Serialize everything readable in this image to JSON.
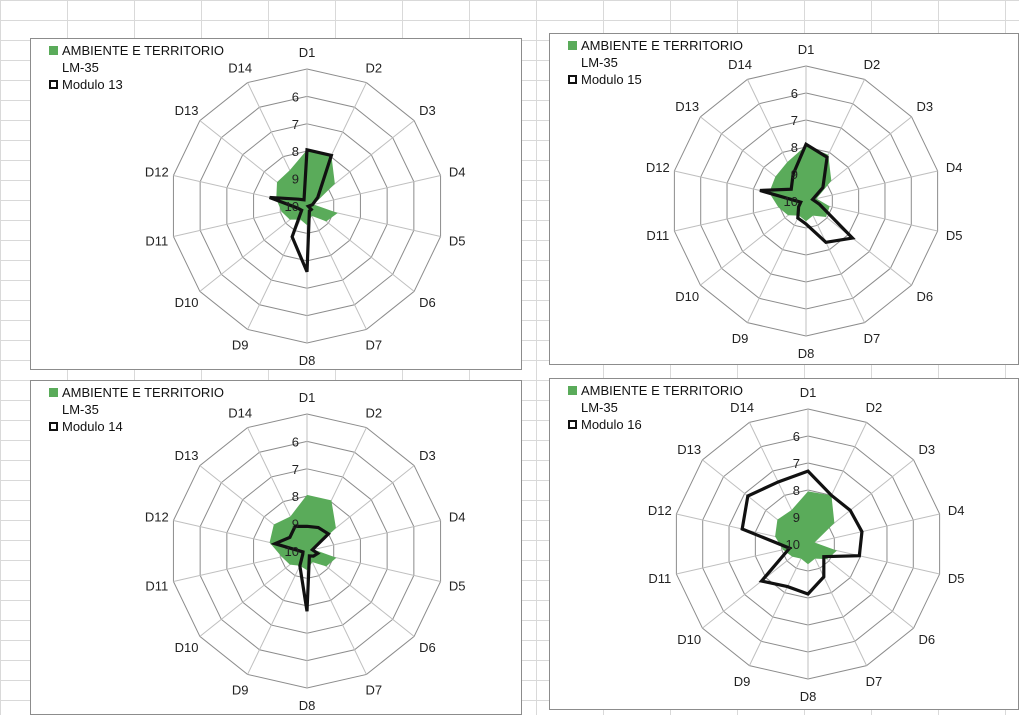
{
  "colors": {
    "area": "#5aab5a",
    "line": "#111111",
    "grid": "#8c8c8c",
    "spoke": "#bfbfbf"
  },
  "chart_data": [
    {
      "type": "radar",
      "axes": [
        "D1",
        "D2",
        "D3",
        "D4",
        "D5",
        "D6",
        "D7",
        "D8",
        "D9",
        "D10",
        "D11",
        "D12",
        "D13",
        "D14"
      ],
      "radial_ticks": [
        "6",
        "7",
        "8",
        "9",
        "10"
      ],
      "rlim": [
        10,
        5
      ],
      "legend": [
        "AMBIENTE E TERRITORIO",
        "LM-35",
        "Modulo 13"
      ],
      "series": [
        {
          "name": "AMBIENTE E TERRITORIO LM-35",
          "fill": true,
          "values": [
            7.95,
            7.95,
            8.7,
            9.75,
            8.85,
            9.1,
            9.6,
            9.3,
            9.45,
            9.2,
            9.05,
            8.85,
            8.6,
            8.55
          ]
        },
        {
          "name": "Modulo 13",
          "fill": false,
          "values": [
            7.95,
            7.95,
            9.5,
            9.8,
            9.95,
            9.8,
            9.8,
            7.6,
            8.75,
            9.75,
            9.65,
            8.6,
            9.6,
            9.75
          ]
        }
      ]
    },
    {
      "type": "radar",
      "axes": [
        "D1",
        "D2",
        "D3",
        "D4",
        "D5",
        "D6",
        "D7",
        "D8",
        "D9",
        "D10",
        "D11",
        "D12",
        "D13",
        "D14"
      ],
      "radial_ticks": [
        "6",
        "7",
        "8",
        "9",
        "10"
      ],
      "rlim": [
        10,
        5
      ],
      "legend": [
        "AMBIENTE E TERRITORIO",
        "LM-35",
        "Modulo 15"
      ],
      "series": [
        {
          "name": "AMBIENTE E TERRITORIO LM-35",
          "fill": true,
          "values": [
            7.95,
            8.1,
            8.8,
            9.6,
            9.1,
            9.05,
            9.4,
            9.25,
            9.4,
            9.15,
            8.95,
            8.6,
            8.55,
            8.4
          ]
        },
        {
          "name": "Modulo 15",
          "fill": false,
          "values": [
            7.9,
            8.2,
            9.2,
            9.75,
            9.5,
            7.8,
            8.3,
            9.15,
            9.3,
            9.65,
            9.8,
            8.25,
            9.3,
            8.9
          ]
        }
      ]
    },
    {
      "type": "radar",
      "axes": [
        "D1",
        "D2",
        "D3",
        "D4",
        "D5",
        "D6",
        "D7",
        "D8",
        "D9",
        "D10",
        "D11",
        "D12",
        "D13",
        "D14"
      ],
      "radial_ticks": [
        "6",
        "7",
        "8",
        "9",
        "10"
      ],
      "rlim": [
        10,
        5
      ],
      "legend": [
        "AMBIENTE E TERRITORIO",
        "LM-35",
        "Modulo 14"
      ],
      "series": [
        {
          "name": "AMBIENTE E TERRITORIO LM-35",
          "fill": true,
          "values": [
            7.95,
            7.95,
            8.65,
            9.75,
            8.9,
            9.1,
            9.55,
            9.3,
            9.4,
            9.2,
            9.05,
            8.6,
            8.45,
            8.6
          ]
        },
        {
          "name": "Modulo 14",
          "fill": false,
          "values": [
            9.1,
            9.05,
            9.0,
            9.8,
            9.6,
            9.7,
            9.8,
            7.8,
            9.4,
            9.8,
            9.85,
            8.8,
            9.2,
            9.0
          ]
        }
      ]
    },
    {
      "type": "radar",
      "axes": [
        "D1",
        "D2",
        "D3",
        "D4",
        "D5",
        "D6",
        "D7",
        "D8",
        "D9",
        "D10",
        "D11",
        "D12",
        "D13",
        "D14"
      ],
      "radial_ticks": [
        "6",
        "7",
        "8",
        "9",
        "10"
      ],
      "rlim": [
        10,
        5
      ],
      "legend": [
        "AMBIENTE E TERRITORIO",
        "LM-35",
        "Modulo 16"
      ],
      "series": [
        {
          "name": "AMBIENTE E TERRITORIO LM-35",
          "fill": true,
          "values": [
            8.05,
            8.0,
            8.75,
            9.75,
            8.9,
            9.1,
            9.4,
            9.25,
            9.4,
            9.25,
            9.05,
            8.75,
            8.55,
            8.6
          ]
        },
        {
          "name": "Modulo 16",
          "fill": false,
          "values": [
            7.3,
            8.0,
            8.0,
            7.95,
            8.05,
            9.25,
            8.65,
            8.15,
            8.25,
            7.8,
            9.3,
            7.5,
            7.15,
            7.45
          ]
        }
      ]
    }
  ]
}
